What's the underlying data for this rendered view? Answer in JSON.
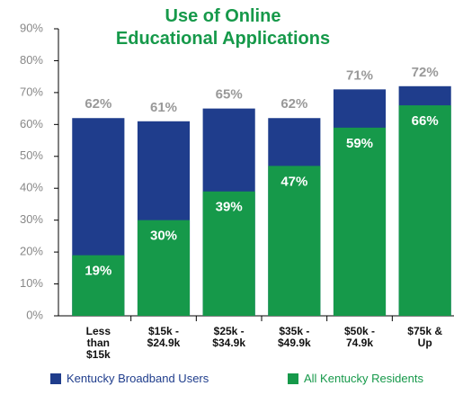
{
  "chart_data": {
    "type": "bar",
    "title": "Use of Online\nEducational Applications",
    "categories": [
      "Less\nthan\n$15k",
      "$15k -\n$24.9k",
      "$25k -\n$34.9k",
      "$35k -\n$49.9k",
      "$50k -\n74.9k",
      "$75k &\nUp"
    ],
    "series": [
      {
        "name": "Kentucky Broadband Users",
        "color": "#1f3d8c",
        "values": [
          62,
          61,
          65,
          62,
          71,
          72
        ],
        "value_labels": [
          "62%",
          "61%",
          "65%",
          "62%",
          "71%",
          "72%"
        ]
      },
      {
        "name": "All Kentucky Residents",
        "color": "#16994a",
        "values": [
          19,
          30,
          39,
          47,
          59,
          66
        ],
        "value_labels": [
          "19%",
          "30%",
          "39%",
          "47%",
          "59%",
          "66%"
        ]
      }
    ],
    "ylim": [
      0,
      90
    ],
    "yticks": [
      {
        "value": 0,
        "label": "0%"
      },
      {
        "value": 10,
        "label": "10%"
      },
      {
        "value": 20,
        "label": "20%"
      },
      {
        "value": 30,
        "label": "30%"
      },
      {
        "value": 40,
        "label": "40%"
      },
      {
        "value": 50,
        "label": "50%"
      },
      {
        "value": 60,
        "label": "60%"
      },
      {
        "value": 70,
        "label": "70%"
      },
      {
        "value": 80,
        "label": "80%"
      },
      {
        "value": 90,
        "label": "90%"
      }
    ],
    "legend": "bottom"
  }
}
